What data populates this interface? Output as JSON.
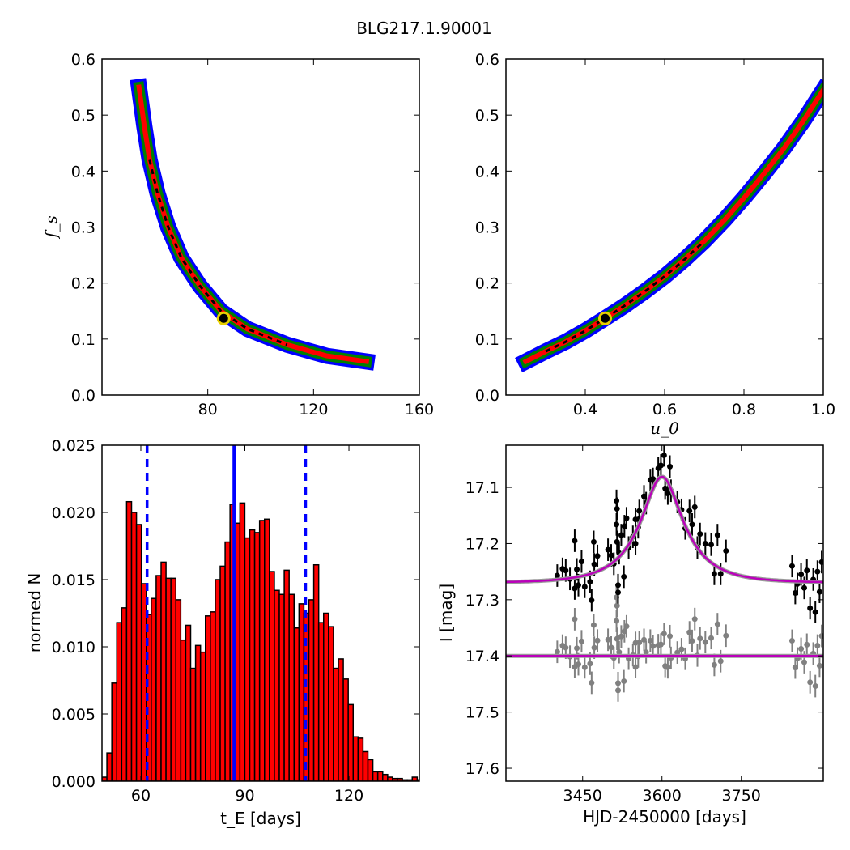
{
  "title": "BLG217.1.90001",
  "chart_data": [
    {
      "type": "heatmap",
      "panel": "top-left",
      "xlabel": "",
      "ylabel": "f_s",
      "xlim": [
        40,
        160
      ],
      "ylim": [
        0,
        0.6
      ],
      "xticks": [
        "80",
        "120",
        "160"
      ],
      "xtick_values": [
        80,
        120,
        160
      ],
      "yticks": [
        "0.0",
        "0.1",
        "0.2",
        "0.3",
        "0.4",
        "0.5",
        "0.6"
      ],
      "ytick_values": [
        0,
        0.1,
        0.2,
        0.3,
        0.4,
        0.5,
        0.6
      ],
      "ridge": [
        [
          54,
          0.55
        ],
        [
          56,
          0.48
        ],
        [
          58,
          0.42
        ],
        [
          61,
          0.36
        ],
        [
          65,
          0.3
        ],
        [
          70,
          0.245
        ],
        [
          77,
          0.195
        ],
        [
          85,
          0.15
        ],
        [
          95,
          0.118
        ],
        [
          110,
          0.09
        ],
        [
          125,
          0.07
        ],
        [
          140,
          0.06
        ]
      ],
      "core_range": [
        58,
        112
      ],
      "best_fit": [
        86,
        0.137
      ],
      "level_colors": [
        "#0000ff",
        "#008000",
        "#ff0000",
        "#000000"
      ]
    },
    {
      "type": "heatmap",
      "panel": "top-right",
      "xlabel": "u_0",
      "ylabel": "",
      "xlim": [
        0.2,
        1.0
      ],
      "ylim": [
        0,
        0.6
      ],
      "xticks": [
        "0.4",
        "0.6",
        "0.8",
        "1.0"
      ],
      "xtick_values": [
        0.4,
        0.6,
        0.8,
        1.0
      ],
      "yticks": [
        "0.0",
        "0.1",
        "0.2",
        "0.3",
        "0.4",
        "0.5",
        "0.6"
      ],
      "ytick_values": [
        0,
        0.1,
        0.2,
        0.3,
        0.4,
        0.5,
        0.6
      ],
      "ridge": [
        [
          0.25,
          0.06
        ],
        [
          0.3,
          0.078
        ],
        [
          0.35,
          0.095
        ],
        [
          0.4,
          0.115
        ],
        [
          0.45,
          0.137
        ],
        [
          0.5,
          0.16
        ],
        [
          0.55,
          0.185
        ],
        [
          0.6,
          0.212
        ],
        [
          0.65,
          0.242
        ],
        [
          0.7,
          0.275
        ],
        [
          0.75,
          0.312
        ],
        [
          0.8,
          0.352
        ],
        [
          0.85,
          0.395
        ],
        [
          0.9,
          0.44
        ],
        [
          0.95,
          0.49
        ],
        [
          1.0,
          0.545
        ]
      ],
      "core_range": [
        0.3,
        0.72
      ],
      "best_fit": [
        0.45,
        0.137
      ],
      "level_colors": [
        "#0000ff",
        "#008000",
        "#ff0000",
        "#000000"
      ]
    },
    {
      "type": "bar",
      "panel": "bottom-left",
      "xlabel": "t_E [days]",
      "ylabel": "normed N",
      "xlim": [
        48.8,
        140.3
      ],
      "ylim": [
        0,
        0.025
      ],
      "xticks": [
        "60",
        "90",
        "120"
      ],
      "xtick_values": [
        60,
        90,
        120
      ],
      "yticks": [
        "0.000",
        "0.005",
        "0.010",
        "0.015",
        "0.020",
        "0.025"
      ],
      "ytick_values": [
        0,
        0.005,
        0.01,
        0.015,
        0.02,
        0.025
      ],
      "bin_start": 48.8,
      "bin_width": 1.42,
      "values": [
        0.0003,
        0.0021,
        0.0073,
        0.0118,
        0.0129,
        0.0208,
        0.02,
        0.0191,
        0.0147,
        0.0124,
        0.0136,
        0.0153,
        0.0163,
        0.0151,
        0.0151,
        0.0135,
        0.0105,
        0.0116,
        0.0084,
        0.0101,
        0.0096,
        0.0123,
        0.0126,
        0.015,
        0.016,
        0.0178,
        0.0206,
        0.0192,
        0.0207,
        0.0181,
        0.0187,
        0.0185,
        0.0194,
        0.0195,
        0.0156,
        0.0142,
        0.0139,
        0.0157,
        0.0139,
        0.0114,
        0.0132,
        0.0125,
        0.0135,
        0.0161,
        0.0118,
        0.0125,
        0.0115,
        0.0084,
        0.0091,
        0.0076,
        0.0057,
        0.0033,
        0.0032,
        0.0022,
        0.0016,
        0.0007,
        0.0007,
        0.0005,
        0.0003,
        0.0002,
        0.0002,
        0.0001,
        0.0001,
        0.0003,
        0.0001
      ],
      "bar_color": "#ff0000",
      "median": 86.9,
      "interval": [
        61.8,
        107.5
      ],
      "line_color": "#0000ff"
    },
    {
      "type": "scatter",
      "panel": "bottom-right",
      "xlabel": "HJD-2450000 [days]",
      "ylabel": "I [mag]",
      "xlim": [
        3305,
        3905
      ],
      "ylim": [
        17.623,
        17.025
      ],
      "xticks": [
        "3450",
        "3600",
        "3750"
      ],
      "xtick_values": [
        3450,
        3600,
        3750
      ],
      "yticks": [
        "17.1",
        "17.2",
        "17.3",
        "17.4",
        "17.5",
        "17.6"
      ],
      "ytick_values": [
        17.1,
        17.2,
        17.3,
        17.4,
        17.5,
        17.6
      ],
      "model": {
        "t0": 3600,
        "tE": 87,
        "u0": 0.45,
        "fs": 0.137,
        "baseline": 17.27,
        "color": "#bb00bb"
      },
      "residual_offset": 17.4,
      "error": 0.02,
      "data_color": "#000000",
      "residual_color": "#808080",
      "points": [
        [
          3402,
          17.257
        ],
        [
          3412,
          17.245
        ],
        [
          3418,
          17.248
        ],
        [
          3426,
          17.263
        ],
        [
          3435,
          17.195
        ],
        [
          3435,
          17.28
        ],
        [
          3439,
          17.246
        ],
        [
          3442,
          17.274
        ],
        [
          3448,
          17.232
        ],
        [
          3454,
          17.277
        ],
        [
          3464,
          17.268
        ],
        [
          3467,
          17.301
        ],
        [
          3471,
          17.197
        ],
        [
          3472,
          17.237
        ],
        [
          3478,
          17.222
        ],
        [
          3498,
          17.211
        ],
        [
          3504,
          17.221
        ],
        [
          3509,
          17.236
        ],
        [
          3514,
          17.124
        ],
        [
          3515,
          17.138
        ],
        [
          3514,
          17.166
        ],
        [
          3515,
          17.197
        ],
        [
          3517,
          17.274
        ],
        [
          3517,
          17.287
        ],
        [
          3519,
          17.217
        ],
        [
          3523,
          17.185
        ],
        [
          3528,
          17.259
        ],
        [
          3529,
          17.169
        ],
        [
          3533,
          17.155
        ],
        [
          3537,
          17.207
        ],
        [
          3545,
          17.188
        ],
        [
          3550,
          17.2
        ],
        [
          3550,
          17.157
        ],
        [
          3555,
          17.171
        ],
        [
          3557,
          17.142
        ],
        [
          3566,
          17.116
        ],
        [
          3570,
          17.128
        ],
        [
          3578,
          17.087
        ],
        [
          3583,
          17.085
        ],
        [
          3593,
          17.066
        ],
        [
          3598,
          17.061
        ],
        [
          3604,
          17.043
        ],
        [
          3606,
          17.102
        ],
        [
          3611,
          17.111
        ],
        [
          3615,
          17.063
        ],
        [
          3617,
          17.106
        ],
        [
          3629,
          17.126
        ],
        [
          3637,
          17.14
        ],
        [
          3644,
          17.173
        ],
        [
          3652,
          17.142
        ],
        [
          3657,
          17.166
        ],
        [
          3662,
          17.135
        ],
        [
          3667,
          17.207
        ],
        [
          3672,
          17.183
        ],
        [
          3682,
          17.2
        ],
        [
          3693,
          17.202
        ],
        [
          3699,
          17.254
        ],
        [
          3705,
          17.185
        ],
        [
          3711,
          17.254
        ],
        [
          3721,
          17.213
        ],
        [
          3846,
          17.24
        ],
        [
          3852,
          17.288
        ],
        [
          3856,
          17.272
        ],
        [
          3863,
          17.255
        ],
        [
          3869,
          17.279
        ],
        [
          3874,
          17.248
        ],
        [
          3880,
          17.315
        ],
        [
          3886,
          17.264
        ],
        [
          3890,
          17.322
        ],
        [
          3894,
          17.25
        ],
        [
          3898,
          17.286
        ],
        [
          3902,
          17.233
        ]
      ]
    }
  ]
}
